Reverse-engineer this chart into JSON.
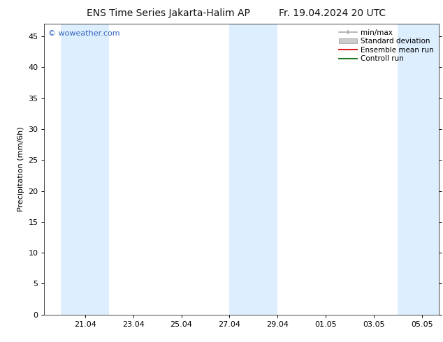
{
  "title_left": "ENS Time Series Jakarta-Halim AP",
  "title_right": "Fr. 19.04.2024 20 UTC",
  "ylabel": "Precipitation (mm/6h)",
  "watermark": "© woweather.com",
  "watermark_color": "#3366bb",
  "ylim": [
    0,
    47
  ],
  "yticks": [
    0,
    5,
    10,
    15,
    20,
    25,
    30,
    35,
    40,
    45
  ],
  "xtick_labels": [
    "21.04",
    "23.04",
    "25.04",
    "27.04",
    "29.04",
    "01.05",
    "03.05",
    "05.05"
  ],
  "bg_color": "#ffffff",
  "plot_bg_color": "#ffffff",
  "band_color": "#ddeeff",
  "legend_items": [
    {
      "label": "min/max",
      "color": "#aaaaaa"
    },
    {
      "label": "Standard deviation",
      "color": "#bbbbbb"
    },
    {
      "label": "Ensemble mean run",
      "color": "#dd2222"
    },
    {
      "label": "Controll run",
      "color": "#227722"
    }
  ],
  "title_fontsize": 10,
  "axis_fontsize": 8,
  "tick_fontsize": 8,
  "legend_fontsize": 7.5,
  "watermark_fontsize": 8
}
